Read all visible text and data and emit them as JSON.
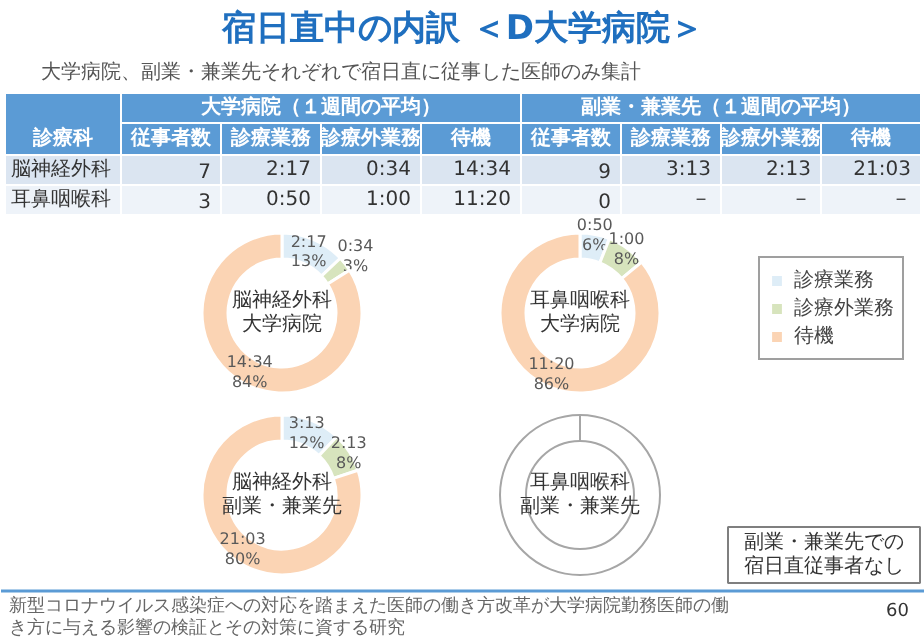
{
  "chart_data": [
    {
      "type": "other",
      "title": "宿日直中の内訳 ＜D大学病院＞",
      "subtitle": "大学病院、副業・兼業先それぞれで宿日直に従事した医師のみ集計",
      "categories": [
        "診療科",
        "従事者数",
        "診療業務",
        "診療外業務",
        "待機",
        "従事者数",
        "診療業務",
        "診療外業務",
        "待機"
      ],
      "y_categories": [
        "脳神経外科",
        "耳鼻咽喉科"
      ],
      "cell_labels": [
        [
          "7",
          "2:17",
          "0:34",
          "14:34",
          "9",
          "3:13",
          "2:13",
          "21:03"
        ],
        [
          "3",
          "0:50",
          "1:00",
          "11:20",
          "0",
          "－",
          "－",
          "－"
        ]
      ],
      "annotations": [
        "大学病院（１週間の平均）",
        "副業・兼業先（１週間の平均）",
        "新型コロナウイルス感染症への対応を踏まえた医師の働き方改革が大学病院勤務医師の働き方に与える影響の検証とその対策に資する研究",
        "60"
      ]
    },
    {
      "type": "donut",
      "title": "脳神経外科大学病院",
      "categories": [
        "診療業務",
        "診療外業務",
        "待機"
      ],
      "values": [
        13,
        3,
        84
      ],
      "colors": [
        "#deedf7",
        "#d7e4bd",
        "#fbd4b4"
      ],
      "value_labels": [
        "2:17\n13%",
        "0:34\n3%",
        "14:34\n84%"
      ],
      "legend": "right"
    },
    {
      "type": "donut",
      "title": "耳鼻咽喉科大学病院",
      "values": [
        6,
        8,
        86
      ],
      "colors": [
        "#deedf7",
        "#d7e4bd",
        "#fbd4b4"
      ],
      "value_labels": [
        "0:50\n6%",
        "1:00\n8%",
        "11:20\n86%"
      ]
    },
    {
      "type": "donut",
      "title": "脳神経外科副業・兼業先",
      "values": [
        12,
        8,
        80
      ],
      "colors": [
        "#deedf7",
        "#d7e4bd",
        "#fbd4b4"
      ],
      "value_labels": [
        "3:13\n12%",
        "2:13\n8%",
        "21:03\n80%"
      ]
    },
    {
      "type": "other",
      "title": "耳鼻咽喉科副業・兼業先",
      "annotations": [
        "副業・兼業先での宿日直従事者なし"
      ]
    }
  ]
}
